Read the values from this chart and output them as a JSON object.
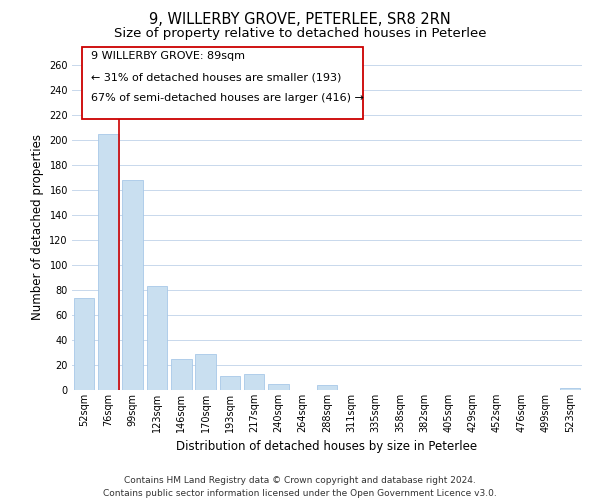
{
  "title": "9, WILLERBY GROVE, PETERLEE, SR8 2RN",
  "subtitle": "Size of property relative to detached houses in Peterlee",
  "xlabel": "Distribution of detached houses by size in Peterlee",
  "ylabel": "Number of detached properties",
  "categories": [
    "52sqm",
    "76sqm",
    "99sqm",
    "123sqm",
    "146sqm",
    "170sqm",
    "193sqm",
    "217sqm",
    "240sqm",
    "264sqm",
    "288sqm",
    "311sqm",
    "335sqm",
    "358sqm",
    "382sqm",
    "405sqm",
    "429sqm",
    "452sqm",
    "476sqm",
    "499sqm",
    "523sqm"
  ],
  "values": [
    74,
    205,
    168,
    83,
    25,
    29,
    11,
    13,
    5,
    0,
    4,
    0,
    0,
    0,
    0,
    0,
    0,
    0,
    0,
    0,
    2
  ],
  "bar_color": "#c9dff0",
  "bar_edge_color": "#a8c8e8",
  "highlight_line_color": "#cc0000",
  "annotation_line1": "9 WILLERBY GROVE: 89sqm",
  "annotation_line2": "← 31% of detached houses are smaller (193)",
  "annotation_line3": "67% of semi-detached houses are larger (416) →",
  "ylim": [
    0,
    260
  ],
  "yticks": [
    0,
    20,
    40,
    60,
    80,
    100,
    120,
    140,
    160,
    180,
    200,
    220,
    240,
    260
  ],
  "footnote": "Contains HM Land Registry data © Crown copyright and database right 2024.\nContains public sector information licensed under the Open Government Licence v3.0.",
  "bg_color": "#ffffff",
  "grid_color": "#c8d8ec",
  "title_fontsize": 10.5,
  "subtitle_fontsize": 9.5,
  "label_fontsize": 8.5,
  "tick_fontsize": 7,
  "annotation_fontsize": 8,
  "footnote_fontsize": 6.5
}
